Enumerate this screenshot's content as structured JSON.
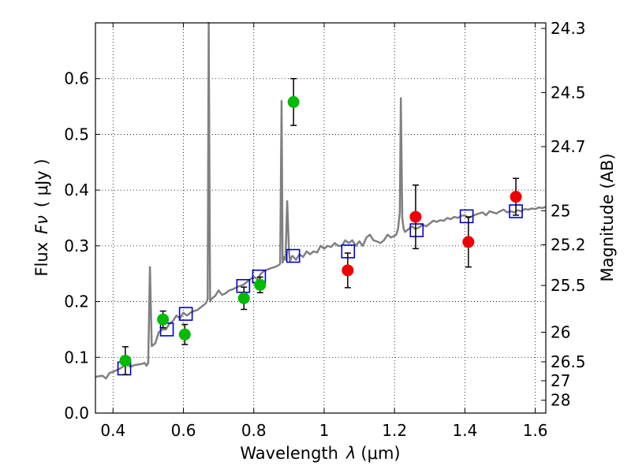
{
  "chart_data": {
    "type": "scatter",
    "xlabel": "Wavelength",
    "xlabel_symbol": "λ",
    "xlabel_unit": "(μm)",
    "ylabel": "Flux",
    "ylabel_symbol": "Fν",
    "ylabel_unit": "( μJy )",
    "ylabel_right": "Magnitude (AB)",
    "xlim": [
      0.35,
      1.63
    ],
    "ylim": [
      0.0,
      0.7
    ],
    "grid": true,
    "x_ticks": [
      0.4,
      0.6,
      0.8,
      1.0,
      1.2,
      1.4,
      1.6
    ],
    "x_tick_labels": [
      "0.4",
      "0.6",
      "0.8",
      "1",
      "1.2",
      "1.4",
      "1.6"
    ],
    "y_ticks": [
      0.0,
      0.1,
      0.2,
      0.3,
      0.4,
      0.5,
      0.6
    ],
    "y_tick_labels": [
      "0.0",
      "0.1",
      "0.2",
      "0.3",
      "0.4",
      "0.5",
      "0.6"
    ],
    "right_ticks": [
      {
        "flux": 0.69,
        "label": "24.3"
      },
      {
        "flux": 0.575,
        "label": "24.5"
      },
      {
        "flux": 0.478,
        "label": "24.7"
      },
      {
        "flux": 0.363,
        "label": "25"
      },
      {
        "flux": 0.302,
        "label": "25.2"
      },
      {
        "flux": 0.229,
        "label": "25.5"
      },
      {
        "flux": 0.145,
        "label": "26"
      },
      {
        "flux": 0.092,
        "label": "26.5"
      },
      {
        "flux": 0.058,
        "label": "27"
      },
      {
        "flux": 0.023,
        "label": "28"
      }
    ],
    "series": [
      {
        "kind": "line",
        "color": "#808080",
        "x": [
          0.35,
          0.37,
          0.38,
          0.39,
          0.4,
          0.41,
          0.42,
          0.43,
          0.44,
          0.45,
          0.46,
          0.47,
          0.48,
          0.49,
          0.495,
          0.5,
          0.505,
          0.51,
          0.52,
          0.53,
          0.54,
          0.55,
          0.56,
          0.57,
          0.58,
          0.59,
          0.6,
          0.61,
          0.62,
          0.63,
          0.64,
          0.65,
          0.66,
          0.665,
          0.669,
          0.672,
          0.676,
          0.68,
          0.69,
          0.7,
          0.71,
          0.72,
          0.73,
          0.74,
          0.75,
          0.76,
          0.77,
          0.78,
          0.79,
          0.8,
          0.81,
          0.82,
          0.83,
          0.84,
          0.85,
          0.86,
          0.87,
          0.875,
          0.879,
          0.882,
          0.886,
          0.89,
          0.895,
          0.9,
          0.903,
          0.907,
          0.91,
          0.92,
          0.93,
          0.94,
          0.95,
          0.96,
          0.97,
          0.98,
          0.99,
          1.0,
          1.01,
          1.02,
          1.03,
          1.04,
          1.05,
          1.06,
          1.07,
          1.08,
          1.09,
          1.1,
          1.11,
          1.12,
          1.13,
          1.14,
          1.15,
          1.16,
          1.17,
          1.18,
          1.19,
          1.2,
          1.205,
          1.21,
          1.215,
          1.218,
          1.222,
          1.226,
          1.23,
          1.24,
          1.25,
          1.26,
          1.27,
          1.28,
          1.29,
          1.3,
          1.31,
          1.32,
          1.33,
          1.34,
          1.35,
          1.36,
          1.37,
          1.38,
          1.39,
          1.4,
          1.41,
          1.42,
          1.43,
          1.44,
          1.45,
          1.46,
          1.47,
          1.48,
          1.49,
          1.5,
          1.51,
          1.52,
          1.53,
          1.54,
          1.55,
          1.56,
          1.57,
          1.58,
          1.59,
          1.6,
          1.61,
          1.62,
          1.63
        ],
        "values": [
          0.065,
          0.067,
          0.062,
          0.072,
          0.074,
          0.077,
          0.08,
          0.084,
          0.088,
          0.083,
          0.086,
          0.087,
          0.088,
          0.09,
          0.085,
          0.09,
          0.262,
          0.12,
          0.125,
          0.145,
          0.15,
          0.15,
          0.16,
          0.165,
          0.175,
          0.17,
          0.18,
          0.175,
          0.18,
          0.183,
          0.185,
          0.19,
          0.195,
          0.198,
          0.205,
          0.7,
          0.2,
          0.205,
          0.21,
          0.22,
          0.212,
          0.215,
          0.22,
          0.222,
          0.225,
          0.228,
          0.23,
          0.235,
          0.24,
          0.245,
          0.24,
          0.25,
          0.255,
          0.258,
          0.26,
          0.262,
          0.265,
          0.268,
          0.56,
          0.27,
          0.28,
          0.275,
          0.38,
          0.29,
          0.272,
          0.28,
          0.282,
          0.275,
          0.285,
          0.28,
          0.29,
          0.285,
          0.29,
          0.288,
          0.3,
          0.295,
          0.3,
          0.298,
          0.305,
          0.3,
          0.3,
          0.31,
          0.305,
          0.31,
          0.3,
          0.308,
          0.3,
          0.315,
          0.32,
          0.31,
          0.308,
          0.305,
          0.31,
          0.32,
          0.315,
          0.318,
          0.32,
          0.33,
          0.36,
          0.565,
          0.35,
          0.33,
          0.325,
          0.33,
          0.335,
          0.33,
          0.333,
          0.338,
          0.335,
          0.34,
          0.345,
          0.343,
          0.346,
          0.345,
          0.35,
          0.348,
          0.352,
          0.35,
          0.354,
          0.355,
          0.35,
          0.353,
          0.356,
          0.358,
          0.36,
          0.355,
          0.362,
          0.36,
          0.358,
          0.362,
          0.365,
          0.36,
          0.362,
          0.36,
          0.364,
          0.362,
          0.366,
          0.365,
          0.367,
          0.366,
          0.369,
          0.368,
          0.37
        ]
      },
      {
        "kind": "squares",
        "color": "#0000cc",
        "x": [
          0.432,
          0.553,
          0.607,
          0.77,
          0.815,
          0.912,
          1.068,
          1.263,
          1.405,
          1.545
        ],
        "values": [
          0.08,
          0.15,
          0.178,
          0.228,
          0.245,
          0.282,
          0.29,
          0.328,
          0.353,
          0.362
        ]
      },
      {
        "kind": "points",
        "color": "#00bb00",
        "x": [
          0.435,
          0.542,
          0.604,
          0.772,
          0.818,
          0.913
        ],
        "values": [
          0.094,
          0.168,
          0.141,
          0.206,
          0.23,
          0.558
        ],
        "errors": [
          0.025,
          0.015,
          0.018,
          0.02,
          0.014,
          0.042
        ]
      },
      {
        "kind": "points",
        "color": "#ee0000",
        "x": [
          1.067,
          1.26,
          1.41,
          1.545
        ],
        "values": [
          0.256,
          0.352,
          0.307,
          0.388
        ],
        "errors": [
          0.031,
          0.057,
          0.045,
          0.033
        ]
      }
    ]
  }
}
